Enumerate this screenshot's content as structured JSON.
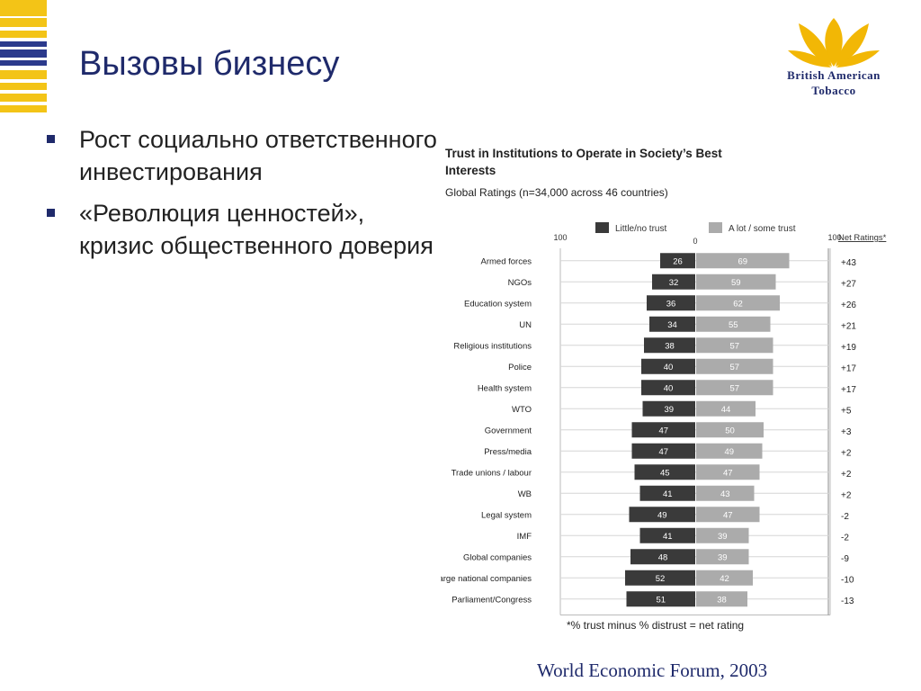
{
  "slide": {
    "title": "Вызовы бизнесу",
    "bullets": [
      "Рост социально ответственного инвестирования",
      "«Революция ценностей», кризис общественного доверия"
    ],
    "source": "World Economic Forum, 2003"
  },
  "logo": {
    "line1": "British American",
    "line2": "Tobacco",
    "icon": "leaf-logo-icon",
    "color_gold": "#f2b705",
    "color_navy": "#1f2a6b"
  },
  "colors": {
    "stripe_yellow": "#f3c417",
    "stripe_navy": "#2b3a8c",
    "distrust_bar": "#3a3a3a",
    "trust_bar": "#ababab"
  },
  "chart_data": {
    "type": "bar",
    "orientation": "horizontal-diverging",
    "title": "Trust in Institutions to Operate in Society’s Best Interests",
    "subtitle": "Global Ratings (n=34,000 across 46 countries)",
    "axis_ticks": {
      "left": "100",
      "center": "0",
      "right": "100"
    },
    "xlim": [
      -100,
      100
    ],
    "net_header": "Net Ratings*",
    "footnote": "*% trust minus % distrust = net rating",
    "categories": [
      "Armed forces",
      "NGOs",
      "Education system",
      "UN",
      "Religious institutions",
      "Police",
      "Health system",
      "WTO",
      "Government",
      "Press/media",
      "Trade unions / labour",
      "WB",
      "Legal system",
      "IMF",
      "Global companies",
      "Large national companies",
      "Parliament/Congress"
    ],
    "series": [
      {
        "name": "Little/no trust",
        "direction": "left",
        "values": [
          26,
          32,
          36,
          34,
          38,
          40,
          40,
          39,
          47,
          47,
          45,
          41,
          49,
          41,
          48,
          52,
          51
        ]
      },
      {
        "name": "A lot / some trust",
        "direction": "right",
        "values": [
          69,
          59,
          62,
          55,
          57,
          57,
          57,
          44,
          50,
          49,
          47,
          43,
          47,
          39,
          39,
          42,
          38
        ]
      }
    ],
    "net_ratings": [
      "+43",
      "+27",
      "+26",
      "+21",
      "+19",
      "+17",
      "+17",
      "+5",
      "+3",
      "+2",
      "+2",
      "+2",
      "-2",
      "-2",
      "-9",
      "-10",
      "-13"
    ],
    "grid": true
  }
}
